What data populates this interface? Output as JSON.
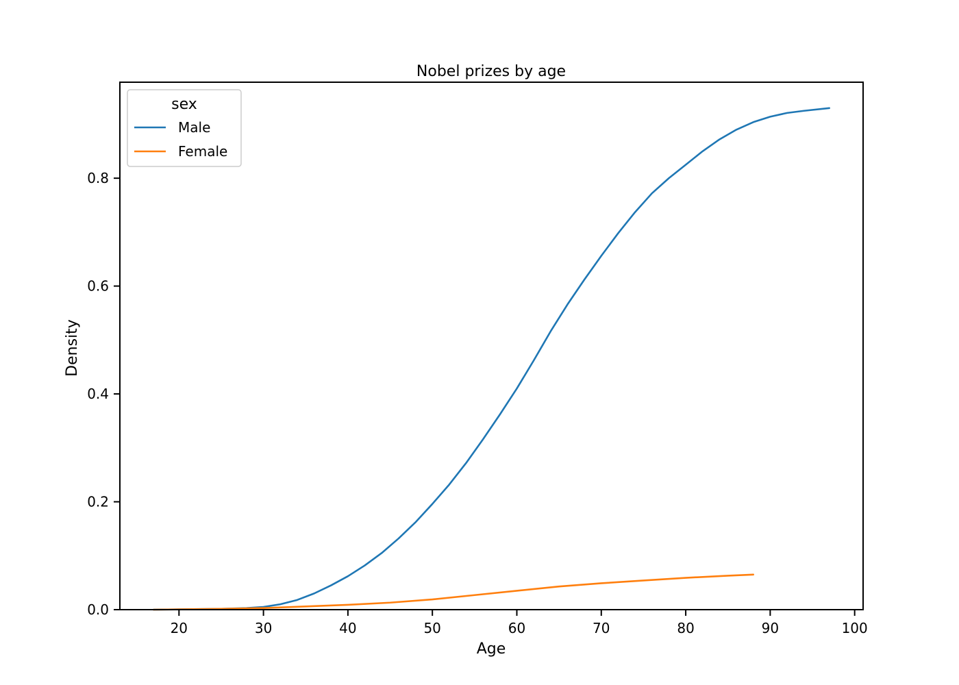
{
  "chart_data": {
    "type": "line",
    "title": "Nobel prizes by age",
    "xlabel": "Age",
    "ylabel": "Density",
    "xlim": [
      13,
      101
    ],
    "ylim": [
      0,
      0.978
    ],
    "xticks": [
      20,
      30,
      40,
      50,
      60,
      70,
      80,
      90,
      100
    ],
    "yticks": [
      0.0,
      0.2,
      0.4,
      0.6,
      0.8
    ],
    "ytick_labels": [
      "0.0",
      "0.2",
      "0.4",
      "0.6",
      "0.8"
    ],
    "grid": false,
    "legend": {
      "title": "sex",
      "placement": "top-left"
    },
    "series": [
      {
        "name": "Male",
        "color": "#1f77b4",
        "x": [
          17,
          20,
          25,
          28,
          30,
          32,
          34,
          36,
          38,
          40,
          42,
          44,
          46,
          48,
          50,
          52,
          54,
          56,
          58,
          60,
          62,
          64,
          66,
          68,
          70,
          72,
          74,
          76,
          78,
          80,
          82,
          84,
          86,
          88,
          90,
          92,
          94,
          97
        ],
        "y": [
          0.0,
          0.0005,
          0.0015,
          0.003,
          0.005,
          0.01,
          0.018,
          0.03,
          0.045,
          0.062,
          0.082,
          0.105,
          0.132,
          0.162,
          0.196,
          0.232,
          0.272,
          0.316,
          0.362,
          0.41,
          0.462,
          0.516,
          0.566,
          0.612,
          0.656,
          0.698,
          0.737,
          0.772,
          0.8,
          0.825,
          0.85,
          0.872,
          0.89,
          0.904,
          0.914,
          0.921,
          0.925,
          0.93
        ]
      },
      {
        "name": "Female",
        "color": "#ff7f0e",
        "x": [
          17,
          20,
          25,
          30,
          35,
          40,
          45,
          50,
          55,
          60,
          65,
          70,
          75,
          80,
          85,
          88
        ],
        "y": [
          0.0,
          0.0005,
          0.0015,
          0.003,
          0.006,
          0.009,
          0.013,
          0.019,
          0.027,
          0.035,
          0.043,
          0.049,
          0.054,
          0.059,
          0.063,
          0.065
        ]
      }
    ]
  }
}
